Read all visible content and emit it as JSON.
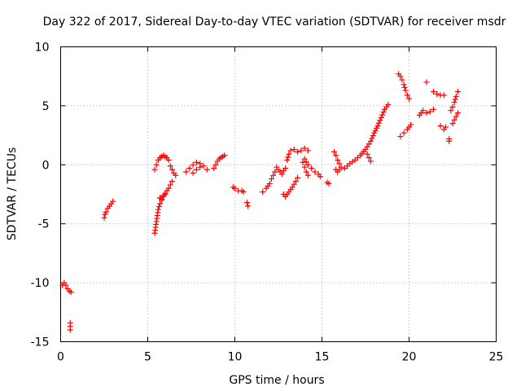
{
  "chart_data": {
    "type": "scatter",
    "title": "Day 322 of 2017, Sidereal Day-to-day VTEC variation (SDTVAR) for receiver msdr",
    "xlabel": "GPS time / hours",
    "ylabel": "SDTVAR / TECUs",
    "xlim": [
      0,
      25
    ],
    "ylim": [
      -15,
      10
    ],
    "xticks": [
      "0",
      "5",
      "10",
      "15",
      "20",
      "25"
    ],
    "yticks": [
      "-15",
      "-10",
      "-5",
      "0",
      "5",
      "10"
    ],
    "grid": true,
    "marker": "+",
    "color": "#ff0000",
    "series": [
      {
        "name": "SDTVAR",
        "segments": [
          [
            [
              0.1,
              -10.2
            ],
            [
              0.2,
              -10.0
            ],
            [
              0.3,
              -10.2
            ],
            [
              0.4,
              -10.5
            ],
            [
              0.5,
              -10.7
            ],
            [
              0.6,
              -10.8
            ]
          ],
          [
            [
              0.55,
              -13.4
            ],
            [
              0.55,
              -14.0
            ]
          ],
          [
            [
              2.5,
              -4.5
            ],
            [
              2.55,
              -4.2
            ],
            [
              2.6,
              -4.0
            ],
            [
              2.7,
              -3.7
            ],
            [
              2.9,
              -3.3
            ],
            [
              3.0,
              -3.1
            ]
          ],
          [
            [
              5.4,
              -5.8
            ],
            [
              5.45,
              -5.3
            ],
            [
              5.5,
              -4.8
            ],
            [
              5.55,
              -4.3
            ],
            [
              5.6,
              -3.8
            ],
            [
              5.7,
              -3.3
            ],
            [
              5.8,
              -2.9
            ],
            [
              5.9,
              -2.6
            ],
            [
              6.0,
              -2.4
            ],
            [
              6.1,
              -2.2
            ],
            [
              6.2,
              -2.0
            ],
            [
              6.3,
              -1.7
            ],
            [
              6.4,
              -1.4
            ]
          ],
          [
            [
              5.4,
              -0.4
            ],
            [
              5.5,
              0.0
            ],
            [
              5.6,
              0.4
            ],
            [
              5.7,
              0.6
            ],
            [
              5.8,
              0.7
            ],
            [
              5.9,
              0.8
            ],
            [
              6.0,
              0.7
            ],
            [
              6.1,
              0.6
            ],
            [
              6.2,
              0.4
            ]
          ],
          [
            [
              5.7,
              -2.8
            ],
            [
              5.8,
              -3.0
            ],
            [
              5.9,
              -2.7
            ],
            [
              6.0,
              -2.5
            ]
          ],
          [
            [
              6.3,
              -0.1
            ],
            [
              6.4,
              -0.4
            ],
            [
              6.5,
              -0.7
            ],
            [
              6.6,
              -0.9
            ]
          ],
          [
            [
              7.2,
              -0.6
            ],
            [
              7.4,
              -0.3
            ],
            [
              7.6,
              0.0
            ],
            [
              7.8,
              0.2
            ],
            [
              8.0,
              0.1
            ],
            [
              8.2,
              -0.1
            ],
            [
              8.4,
              -0.4
            ]
          ],
          [
            [
              7.6,
              -0.7
            ],
            [
              7.8,
              -0.4
            ],
            [
              8.0,
              -0.2
            ]
          ],
          [
            [
              8.8,
              -0.3
            ],
            [
              8.9,
              0.0
            ],
            [
              9.0,
              0.3
            ],
            [
              9.1,
              0.5
            ],
            [
              9.2,
              0.6
            ],
            [
              9.3,
              0.7
            ],
            [
              9.4,
              0.8
            ]
          ],
          [
            [
              9.9,
              -1.9
            ],
            [
              10.0,
              -2.0
            ],
            [
              10.2,
              -2.2
            ],
            [
              10.4,
              -2.2
            ],
            [
              10.5,
              -2.3
            ]
          ],
          [
            [
              10.7,
              -3.2
            ],
            [
              10.75,
              -3.5
            ]
          ],
          [
            [
              11.6,
              -2.3
            ],
            [
              11.8,
              -2.0
            ],
            [
              12.0,
              -1.6
            ],
            [
              12.1,
              -1.2
            ],
            [
              12.2,
              -0.9
            ],
            [
              12.3,
              -0.6
            ]
          ],
          [
            [
              12.4,
              -0.2
            ],
            [
              12.5,
              -0.4
            ],
            [
              12.6,
              -0.6
            ],
            [
              12.7,
              -0.8
            ],
            [
              12.8,
              -0.5
            ],
            [
              12.9,
              -0.3
            ]
          ],
          [
            [
              12.8,
              -2.5
            ],
            [
              12.9,
              -2.7
            ],
            [
              13.1,
              -2.3
            ],
            [
              13.3,
              -1.9
            ],
            [
              13.5,
              -1.4
            ],
            [
              13.6,
              -1.1
            ]
          ],
          [
            [
              13.0,
              0.4
            ],
            [
              13.1,
              0.9
            ],
            [
              13.2,
              1.2
            ],
            [
              13.4,
              1.3
            ],
            [
              13.6,
              1.1
            ],
            [
              13.8,
              1.2
            ],
            [
              14.0,
              1.4
            ],
            [
              14.2,
              1.2
            ]
          ],
          [
            [
              13.9,
              0.2
            ],
            [
              14.0,
              -0.2
            ],
            [
              14.1,
              -0.6
            ],
            [
              14.2,
              -0.9
            ]
          ],
          [
            [
              14.0,
              0.5
            ],
            [
              14.2,
              0.0
            ],
            [
              14.4,
              -0.3
            ],
            [
              14.6,
              -0.6
            ],
            [
              14.8,
              -0.8
            ],
            [
              14.9,
              -1.0
            ]
          ],
          [
            [
              15.3,
              -1.5
            ],
            [
              15.4,
              -1.6
            ]
          ],
          [
            [
              15.7,
              1.1
            ],
            [
              15.8,
              0.8
            ],
            [
              15.9,
              0.4
            ],
            [
              16.0,
              0.1
            ],
            [
              16.1,
              -0.2
            ],
            [
              15.9,
              -0.6
            ],
            [
              15.8,
              -0.4
            ]
          ],
          [
            [
              16.3,
              -0.3
            ],
            [
              16.6,
              0.1
            ],
            [
              16.9,
              0.4
            ],
            [
              17.2,
              0.8
            ],
            [
              17.5,
              1.3
            ],
            [
              17.8,
              2.0
            ],
            [
              18.0,
              2.7
            ],
            [
              18.2,
              3.3
            ],
            [
              18.4,
              4.0
            ],
            [
              18.6,
              4.7
            ],
            [
              18.8,
              5.1
            ]
          ],
          [
            [
              17.6,
              0.9
            ],
            [
              17.7,
              0.6
            ],
            [
              17.8,
              0.3
            ]
          ],
          [
            [
              19.4,
              7.7
            ],
            [
              19.5,
              7.5
            ],
            [
              19.6,
              7.2
            ],
            [
              19.7,
              6.8
            ],
            [
              19.8,
              6.3
            ],
            [
              19.9,
              5.9
            ],
            [
              20.0,
              5.6
            ]
          ],
          [
            [
              19.5,
              2.4
            ],
            [
              19.7,
              2.7
            ],
            [
              19.9,
              3.0
            ],
            [
              20.1,
              3.4
            ]
          ],
          [
            [
              20.6,
              4.2
            ],
            [
              20.8,
              4.6
            ],
            [
              21.0,
              4.4
            ],
            [
              21.2,
              4.5
            ],
            [
              21.4,
              4.7
            ]
          ],
          [
            [
              21.0,
              7.0
            ]
          ],
          [
            [
              21.4,
              6.2
            ],
            [
              21.6,
              6.0
            ],
            [
              21.8,
              5.9
            ],
            [
              22.0,
              5.9
            ]
          ],
          [
            [
              21.8,
              3.3
            ],
            [
              22.0,
              3.0
            ],
            [
              22.1,
              3.2
            ]
          ],
          [
            [
              22.3,
              2.2
            ],
            [
              22.3,
              2.0
            ]
          ],
          [
            [
              22.4,
              4.6
            ],
            [
              22.5,
              4.9
            ],
            [
              22.6,
              5.3
            ],
            [
              22.7,
              5.8
            ],
            [
              22.8,
              6.2
            ]
          ],
          [
            [
              22.5,
              3.5
            ],
            [
              22.6,
              3.8
            ],
            [
              22.7,
              4.1
            ],
            [
              22.8,
              4.4
            ]
          ]
        ]
      }
    ]
  }
}
